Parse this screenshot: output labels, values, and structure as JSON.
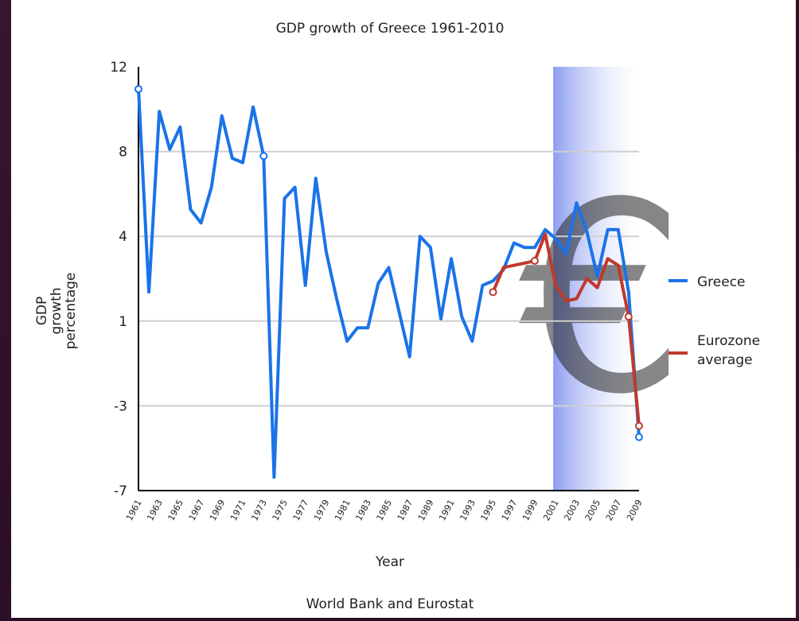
{
  "chart_data": {
    "type": "line",
    "title": "GDP growth of Greece 1961-2010",
    "xlabel": "Year",
    "ylabel": [
      "GDP",
      "growth",
      "percentage"
    ],
    "source": "World Bank and Eurostat",
    "xlim": [
      1961,
      2009
    ],
    "ylim": [
      -7,
      12
    ],
    "y_ticks": [
      "12",
      "8",
      "4",
      "1",
      "-3",
      "-7"
    ],
    "x_ticks": [
      1961,
      1963,
      1965,
      1967,
      1969,
      1971,
      1973,
      1975,
      1977,
      1979,
      1981,
      1983,
      1985,
      1987,
      1989,
      1991,
      1993,
      1995,
      1997,
      1999,
      2001,
      2003,
      2005,
      2007,
      2009
    ],
    "grid": true,
    "legend_position": "right",
    "highlight": {
      "from": 2001,
      "to": 2010,
      "symbol": "€"
    },
    "series": [
      {
        "name": "Greece",
        "color": "#1a73e8",
        "x": [
          1961,
          1962,
          1963,
          1964,
          1965,
          1966,
          1967,
          1968,
          1969,
          1970,
          1971,
          1972,
          1973,
          1974,
          1975,
          1976,
          1977,
          1978,
          1979,
          1980,
          1981,
          1982,
          1983,
          1984,
          1985,
          1986,
          1987,
          1988,
          1989,
          1990,
          1991,
          1992,
          1993,
          1994,
          1995,
          1996,
          1997,
          1998,
          1999,
          2000,
          2001,
          2002,
          2003,
          2004,
          2005,
          2006,
          2007,
          2008,
          2009
        ],
        "values": [
          11.0,
          1.9,
          10.0,
          8.3,
          9.3,
          5.6,
          5.0,
          6.6,
          9.8,
          7.9,
          7.7,
          10.2,
          8.0,
          -6.4,
          6.1,
          6.6,
          2.2,
          7.0,
          3.7,
          1.6,
          -0.3,
          0.3,
          0.3,
          2.3,
          3.0,
          1.0,
          -1.0,
          4.4,
          3.9,
          0.7,
          3.4,
          0.8,
          -0.3,
          2.2,
          2.4,
          2.9,
          4.1,
          3.9,
          3.9,
          4.7,
          4.3,
          3.6,
          5.9,
          4.6,
          2.6,
          4.7,
          4.7,
          1.9,
          -4.6
        ]
      },
      {
        "name": "Eurozone average",
        "color": "#c0392b",
        "x": [
          1995,
          1996,
          1997,
          1998,
          1999,
          2000,
          2001,
          2002,
          2003,
          2004,
          2005,
          2006,
          2007,
          2008,
          2009
        ],
        "values": [
          1.9,
          3.0,
          3.1,
          3.2,
          3.3,
          4.5,
          2.2,
          1.5,
          1.6,
          2.5,
          2.1,
          3.4,
          3.1,
          0.8,
          -4.1
        ]
      }
    ]
  }
}
